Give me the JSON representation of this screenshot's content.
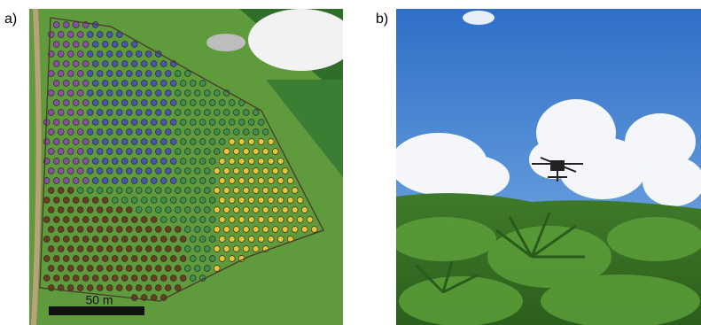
{
  "panels": [
    {
      "label": "a)",
      "scale_bar": "50 m"
    },
    {
      "label": "b)"
    }
  ]
}
